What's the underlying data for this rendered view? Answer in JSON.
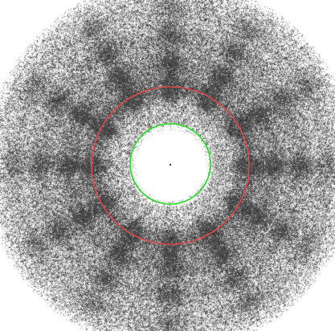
{
  "image": {
    "subject": "diffraction-pattern",
    "background": "#ffffff",
    "speckle_color": "#555555",
    "center_glow": "#ffffff"
  },
  "overlays": {
    "inner_ring": {
      "color": "#22dd22"
    },
    "outer_ring": {
      "color": "#e04a4a"
    },
    "center_point": {
      "color": "#3a3a3a"
    }
  }
}
